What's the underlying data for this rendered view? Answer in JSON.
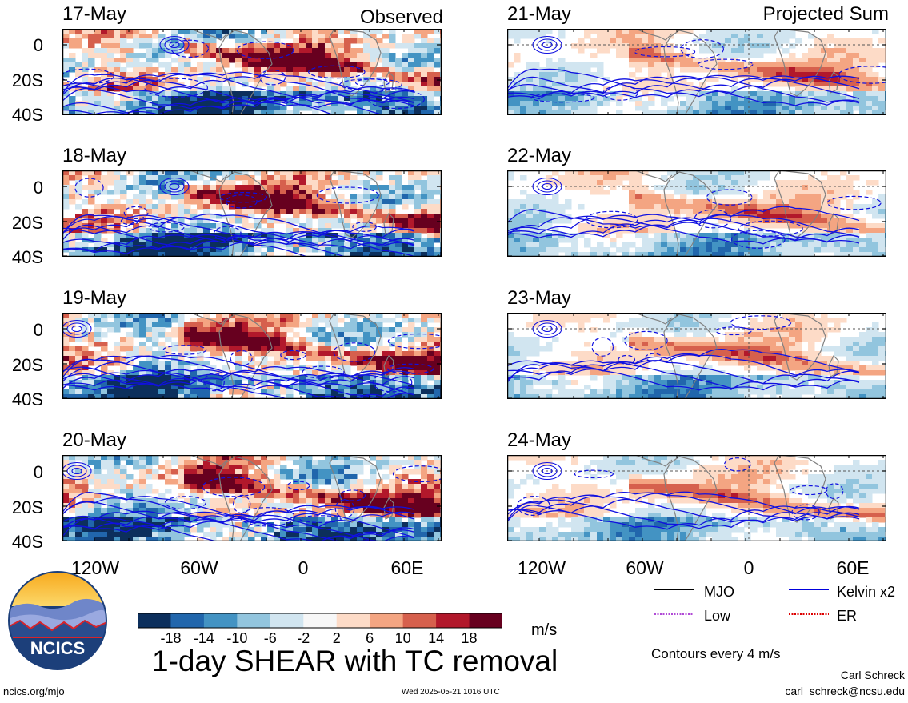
{
  "chart_data": {
    "type": "heatmap",
    "title": "1-day SHEAR with TC removal",
    "columns": [
      {
        "title": "Observed",
        "dates": [
          "17-May",
          "18-May",
          "19-May",
          "20-May"
        ]
      },
      {
        "title": "Projected Sum",
        "dates": [
          "21-May",
          "22-May",
          "23-May",
          "24-May"
        ]
      }
    ],
    "y_ticks": [
      "0",
      "20S",
      "40S"
    ],
    "x_ticks": [
      "120W",
      "60W",
      "0",
      "60E"
    ],
    "colorbar": {
      "unit": "m/s",
      "tick_labels": [
        "-18",
        "-14",
        "-10",
        "-6",
        "-2",
        "2",
        "6",
        "10",
        "14",
        "18"
      ],
      "colors": [
        "#0c2f5c",
        "#2166ac",
        "#4393c3",
        "#92c5de",
        "#d1e5f0",
        "#f7f7f7",
        "#fddbc7",
        "#f4a582",
        "#d6604d",
        "#b2182b",
        "#67001f"
      ]
    },
    "legend": [
      {
        "label": "MJO",
        "color": "#000000",
        "style": "solid"
      },
      {
        "label": "Kelvin x2",
        "color": "#0000dd",
        "style": "solid"
      },
      {
        "label": "Low",
        "color": "#b04ad6",
        "style": "dotted"
      },
      {
        "label": "ER",
        "color": "#dd0000",
        "style": "dotted"
      }
    ],
    "contour_note": "Contours every 4 m/s"
  },
  "footer": {
    "logo_text": "NCICS",
    "url": "ncics.org/mjo",
    "timestamp": "Wed 2025-05-21 1016 UTC",
    "author": "Carl Schreck",
    "email": "carl_schreck@ncsu.edu"
  }
}
